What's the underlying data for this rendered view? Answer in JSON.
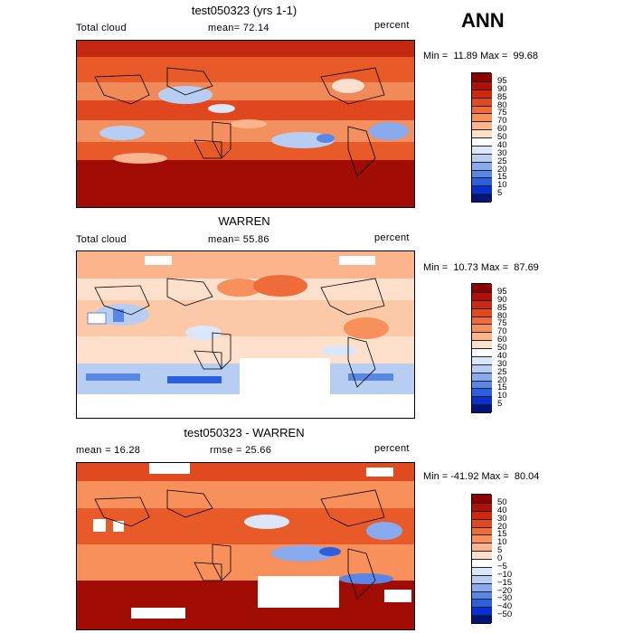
{
  "season": "ANN",
  "panels": [
    {
      "title": "test050323 (yrs 1-1)",
      "left_label": "Total cloud",
      "middle_label": "mean=  72.14",
      "right_label": "percent",
      "minmax": "Min =  11.89 Max =  99.68",
      "palette": "pos",
      "levels": [
        "95",
        "90",
        "85",
        "80",
        "75",
        "70",
        "60",
        "50",
        "40",
        "30",
        "25",
        "20",
        "15",
        "10",
        "5"
      ]
    },
    {
      "title": "WARREN",
      "left_label": "Total cloud",
      "middle_label": "mean=  55.86",
      "right_label": "percent",
      "minmax": "Min =  10.73 Max =  87.69",
      "palette": "pos",
      "levels": [
        "95",
        "90",
        "85",
        "80",
        "75",
        "70",
        "60",
        "50",
        "40",
        "30",
        "25",
        "20",
        "15",
        "10",
        "5"
      ]
    },
    {
      "title": "test050323 - WARREN",
      "left_label": "mean =  16.28",
      "middle_label": "rmse =  25.66",
      "right_label": "percent",
      "minmax": "Min = -41.92 Max =  80.04",
      "palette": "diff",
      "levels": [
        "50",
        "40",
        "30",
        "20",
        "15",
        "10",
        "5",
        "0",
        "−5",
        "−10",
        "−15",
        "−20",
        "−30",
        "−40",
        "−50"
      ]
    }
  ],
  "colors": {
    "pos": [
      "#8b0000",
      "#b01008",
      "#cc2a10",
      "#e04a20",
      "#ef6c3a",
      "#f7905a",
      "#fbb48c",
      "#fde0cc",
      "#ffffff",
      "#dbe6f8",
      "#b8cdf2",
      "#8aaaee",
      "#5a86e6",
      "#2c5ee0",
      "#0a2fd0",
      "#00157a"
    ],
    "diff": [
      "#8b0000",
      "#b01008",
      "#cc2a10",
      "#e04a20",
      "#ef6c3a",
      "#f7905a",
      "#fbb48c",
      "#fde0cc",
      "#ffffff",
      "#dbe6f8",
      "#b8cdf2",
      "#8aaaee",
      "#5a86e6",
      "#2c5ee0",
      "#0a2fd0",
      "#00157a"
    ]
  }
}
